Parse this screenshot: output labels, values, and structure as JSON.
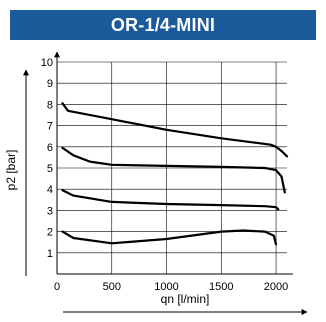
{
  "chart_data": {
    "type": "line",
    "title": "OR-1/4-MINI",
    "xlabel": "qn [l/min]",
    "ylabel": "p2 [bar]",
    "xlim": [
      0,
      2100
    ],
    "ylim": [
      0,
      10
    ],
    "xticks": [
      "0",
      "500",
      "1000",
      "1500",
      "2000"
    ],
    "yticks": [
      "1",
      "2",
      "3",
      "4",
      "5",
      "6",
      "7",
      "8",
      "9",
      "10"
    ],
    "grid": true,
    "series": [
      {
        "points": [
          [
            50,
            8.05
          ],
          [
            100,
            7.7
          ],
          [
            500,
            7.3
          ],
          [
            1000,
            6.8
          ],
          [
            1500,
            6.4
          ],
          [
            1950,
            6.1
          ],
          [
            2000,
            6.0
          ],
          [
            2050,
            5.8
          ],
          [
            2100,
            5.55
          ]
        ]
      },
      {
        "points": [
          [
            50,
            5.95
          ],
          [
            150,
            5.6
          ],
          [
            300,
            5.3
          ],
          [
            500,
            5.15
          ],
          [
            1000,
            5.1
          ],
          [
            1500,
            5.05
          ],
          [
            1900,
            5.0
          ],
          [
            2000,
            4.9
          ],
          [
            2050,
            4.6
          ],
          [
            2080,
            3.85
          ]
        ]
      },
      {
        "points": [
          [
            50,
            3.95
          ],
          [
            150,
            3.7
          ],
          [
            500,
            3.4
          ],
          [
            1000,
            3.3
          ],
          [
            1500,
            3.25
          ],
          [
            1900,
            3.2
          ],
          [
            2000,
            3.15
          ],
          [
            2020,
            3.05
          ]
        ]
      },
      {
        "points": [
          [
            50,
            2.0
          ],
          [
            150,
            1.7
          ],
          [
            500,
            1.45
          ],
          [
            1000,
            1.65
          ],
          [
            1500,
            2.0
          ],
          [
            1700,
            2.05
          ],
          [
            1900,
            2.0
          ],
          [
            1980,
            1.8
          ],
          [
            2000,
            1.4
          ]
        ]
      }
    ]
  }
}
